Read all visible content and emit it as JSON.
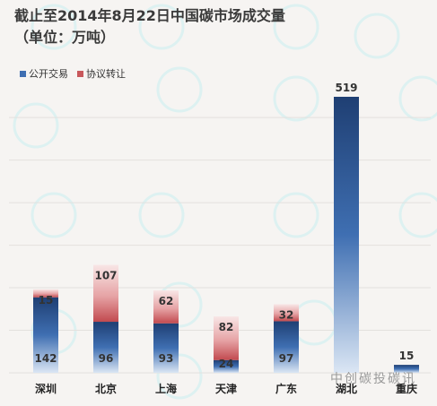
{
  "title_line1": "截止至2014年8月22日中国碳市场成交量",
  "title_line2": "（单位：万吨）",
  "legend": [
    {
      "label": "公开交易",
      "color": "#3f6fb2"
    },
    {
      "label": "协议转让",
      "color": "#c8585c"
    }
  ],
  "watermark": "中创碳投碳讯",
  "chart_data": {
    "type": "bar",
    "stacked": true,
    "title": "截止至2014年8月22日中国碳市场成交量（单位：万吨）",
    "categories": [
      "深圳",
      "北京",
      "上海",
      "天津",
      "广东",
      "湖北",
      "重庆"
    ],
    "series": [
      {
        "name": "公开交易",
        "color": "#3f6fb2",
        "values": [
          142,
          96,
          93,
          24,
          97,
          519,
          15
        ]
      },
      {
        "name": "协议转让",
        "color": "#c8585c",
        "values": [
          15,
          107,
          62,
          82,
          32,
          0,
          0
        ]
      }
    ],
    "labels": {
      "public": [
        "142",
        "96",
        "93",
        "24",
        "97",
        "519",
        "15"
      ],
      "agreement": [
        "15",
        "107",
        "62",
        "82",
        "32",
        "",
        ""
      ]
    },
    "ylim": [
      0,
      530
    ],
    "legend_position": "top-left",
    "grid": true
  }
}
